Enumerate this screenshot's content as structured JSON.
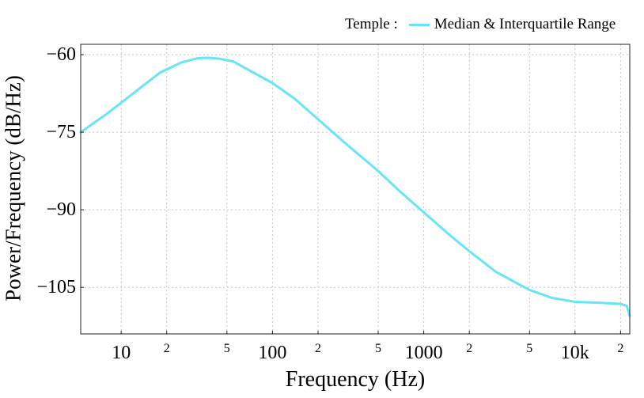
{
  "legend": {
    "title": "Temple :",
    "label": "Median & Interquartile Range",
    "color": "#67e4f6"
  },
  "chart_data": {
    "type": "line",
    "title": "",
    "xlabel": "Frequency (Hz)",
    "ylabel": "Power/Frequency (dB/Hz)",
    "xscale": "log",
    "xlim": [
      5.4,
      23000
    ],
    "ylim": [
      -114,
      -58
    ],
    "grid": true,
    "legend_position": "top-right",
    "x_ticks": [
      {
        "value": 10,
        "label": "10",
        "major": true
      },
      {
        "value": 20,
        "label": "2",
        "major": false
      },
      {
        "value": 50,
        "label": "5",
        "major": false
      },
      {
        "value": 100,
        "label": "100",
        "major": true
      },
      {
        "value": 200,
        "label": "2",
        "major": false
      },
      {
        "value": 500,
        "label": "5",
        "major": false
      },
      {
        "value": 1000,
        "label": "1000",
        "major": true
      },
      {
        "value": 2000,
        "label": "2",
        "major": false
      },
      {
        "value": 5000,
        "label": "5",
        "major": false
      },
      {
        "value": 10000,
        "label": "10k",
        "major": true
      },
      {
        "value": 20000,
        "label": "2",
        "major": false
      }
    ],
    "y_ticks": [
      {
        "value": -60,
        "label": "−60"
      },
      {
        "value": -75,
        "label": "−75"
      },
      {
        "value": -90,
        "label": "−90"
      },
      {
        "value": -105,
        "label": "−105"
      }
    ],
    "series": [
      {
        "name": "Median & Interquartile Range",
        "color": "#67e4f6",
        "x": [
          5.4,
          8,
          12,
          18,
          25,
          32,
          38,
          45,
          55,
          70,
          100,
          140,
          200,
          300,
          500,
          700,
          1000,
          1500,
          2000,
          3000,
          5000,
          7000,
          10000,
          15000,
          20000,
          22000,
          23000
        ],
        "y": [
          -75,
          -71.5,
          -67.5,
          -63.5,
          -61.5,
          -60.7,
          -60.6,
          -60.8,
          -61.3,
          -63,
          -65.5,
          -68.5,
          -72.5,
          -77,
          -82.5,
          -86.5,
          -90.5,
          -95,
          -98,
          -102,
          -105.5,
          -107,
          -107.8,
          -108,
          -108.2,
          -108.6,
          -110.5
        ]
      }
    ]
  }
}
